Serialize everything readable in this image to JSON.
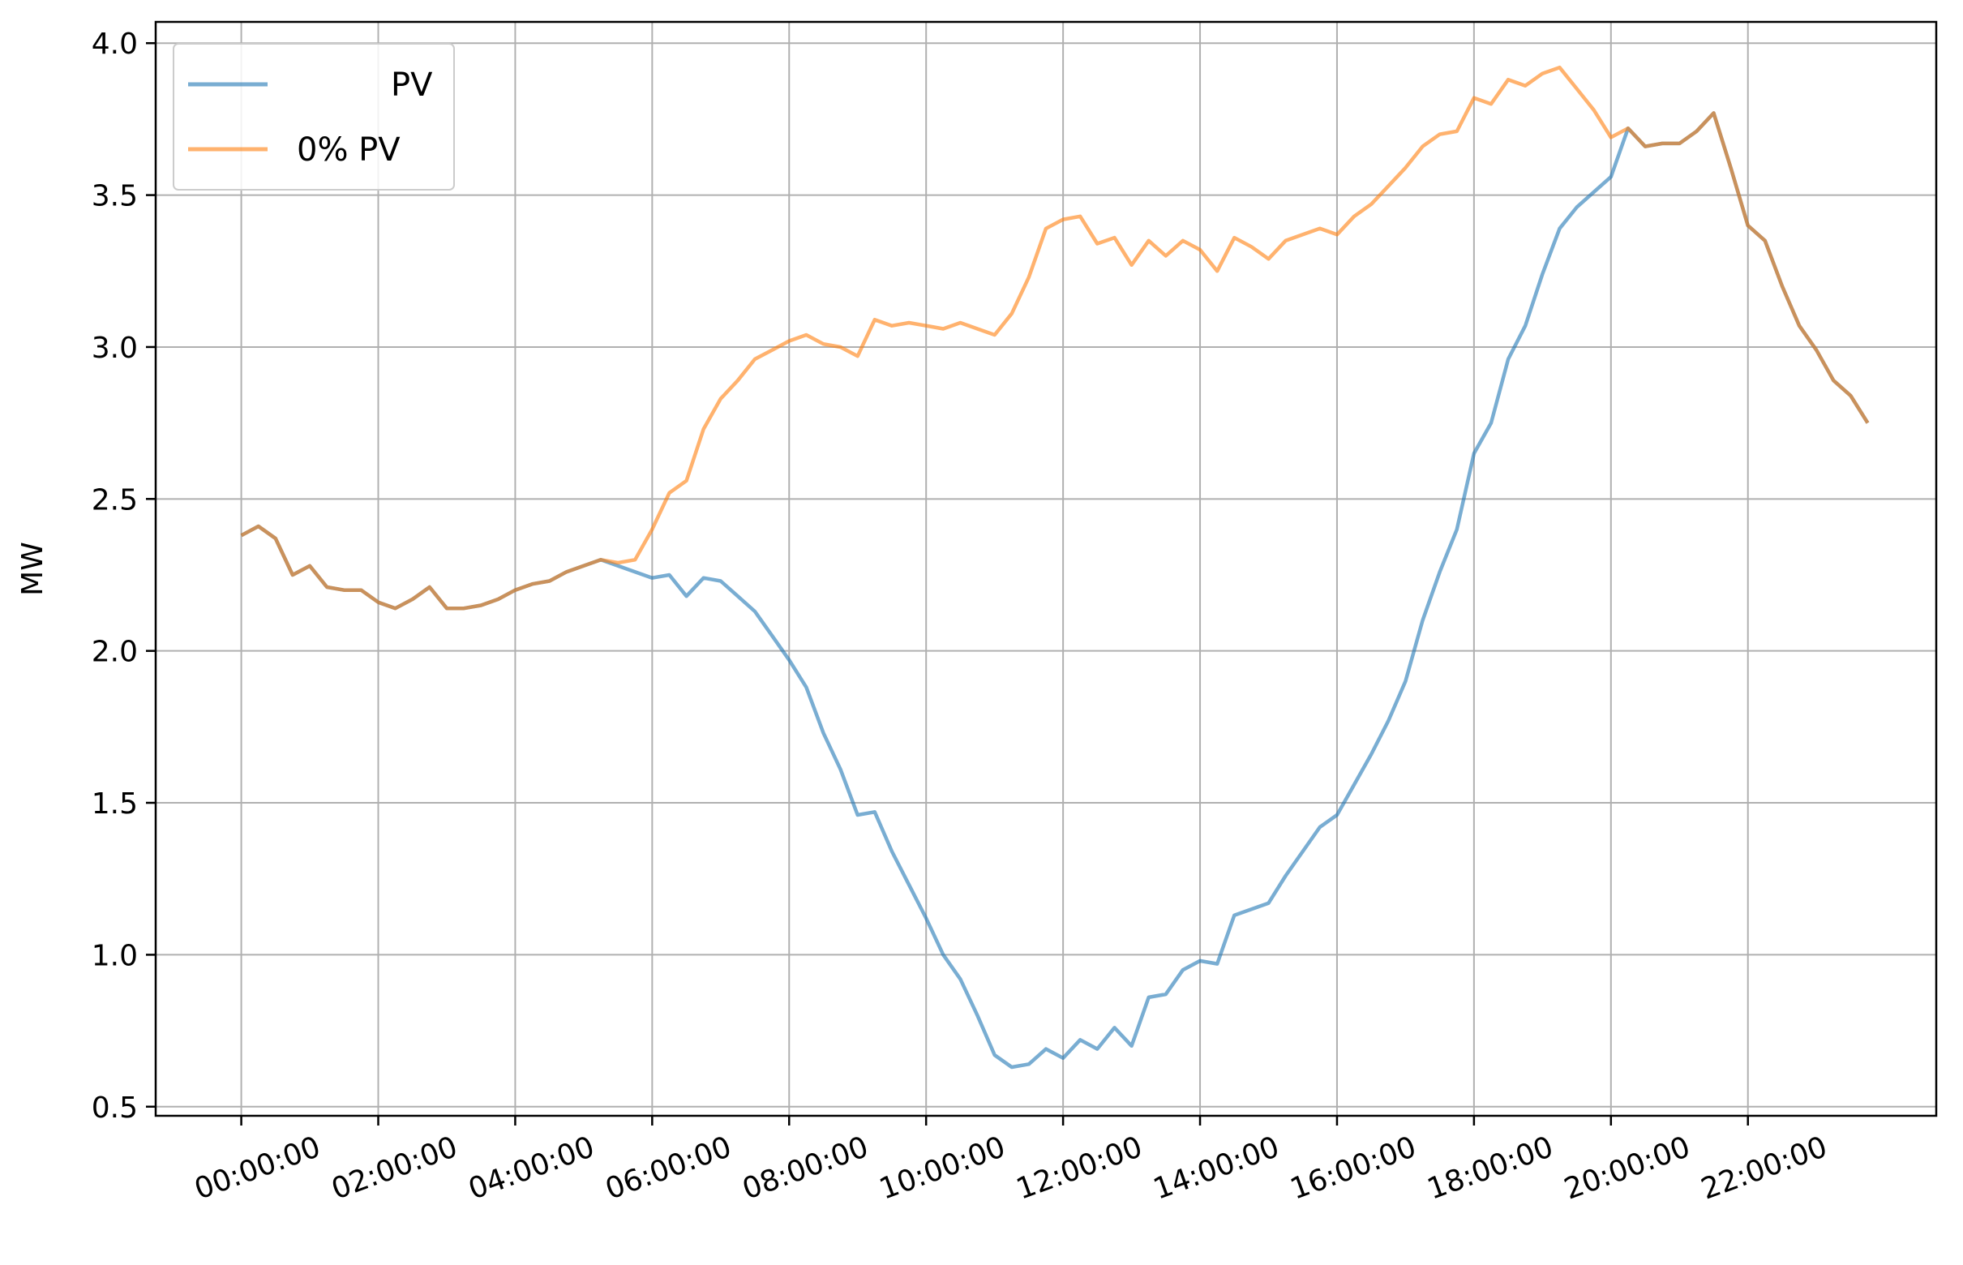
{
  "chart_data": {
    "type": "line",
    "title": "",
    "xlabel": "",
    "ylabel": "MW",
    "ylim": [
      0.5,
      4.0
    ],
    "yticks": [
      0.5,
      1.0,
      1.5,
      2.0,
      2.5,
      3.0,
      3.5,
      4.0
    ],
    "ytick_labels": [
      "0.5",
      "1.0",
      "1.5",
      "2.0",
      "2.5",
      "3.0",
      "3.5",
      "4.0"
    ],
    "xlim_hours": [
      -1.25,
      24.75
    ],
    "xticks_hours": [
      0,
      2,
      4,
      6,
      8,
      10,
      12,
      14,
      16,
      18,
      20,
      22
    ],
    "xtick_labels": [
      "00:00:00",
      "02:00:00",
      "04:00:00",
      "06:00:00",
      "08:00:00",
      "10:00:00",
      "12:00:00",
      "14:00:00",
      "16:00:00",
      "18:00:00",
      "20:00:00",
      "22:00:00"
    ],
    "grid": true,
    "legend_position": "upper-left",
    "x_hours": [
      0,
      0.25,
      0.5,
      0.75,
      1,
      1.25,
      1.5,
      1.75,
      2,
      2.25,
      2.5,
      2.75,
      3,
      3.25,
      3.5,
      3.75,
      4,
      4.25,
      4.5,
      4.75,
      5,
      5.25,
      5.5,
      5.75,
      6,
      6.25,
      6.5,
      6.75,
      7,
      7.25,
      7.5,
      7.75,
      8,
      8.25,
      8.5,
      8.75,
      9,
      9.25,
      9.5,
      9.75,
      10,
      10.25,
      10.5,
      10.75,
      11,
      11.25,
      11.5,
      11.75,
      12,
      12.25,
      12.5,
      12.75,
      13,
      13.25,
      13.5,
      13.75,
      14,
      14.25,
      14.5,
      14.75,
      15,
      15.25,
      15.5,
      15.75,
      16,
      16.25,
      16.5,
      16.75,
      17,
      17.25,
      17.5,
      17.75,
      18,
      18.25,
      18.5,
      18.75,
      19,
      19.25,
      19.5,
      19.75,
      20,
      20.25,
      20.5,
      20.75,
      21,
      21.25,
      21.5,
      21.75,
      22,
      22.25,
      22.5,
      22.75,
      23,
      23.25,
      23.5,
      23.75
    ],
    "series": [
      {
        "name": "PV",
        "color": "#1f77b4",
        "values": [
          2.38,
          2.41,
          2.37,
          2.25,
          2.28,
          2.21,
          2.2,
          2.2,
          2.16,
          2.14,
          2.17,
          2.21,
          2.14,
          2.14,
          2.15,
          2.17,
          2.2,
          2.22,
          2.23,
          2.26,
          2.28,
          2.3,
          2.28,
          2.26,
          2.24,
          2.25,
          2.18,
          2.24,
          2.23,
          2.18,
          2.13,
          2.05,
          1.97,
          1.88,
          1.73,
          1.61,
          1.46,
          1.47,
          1.34,
          1.23,
          1.12,
          1.0,
          0.92,
          0.8,
          0.67,
          0.63,
          0.64,
          0.69,
          0.66,
          0.72,
          0.69,
          0.76,
          0.7,
          0.86,
          0.87,
          0.95,
          0.98,
          0.97,
          1.13,
          1.15,
          1.17,
          1.26,
          1.34,
          1.42,
          1.46,
          1.56,
          1.66,
          1.77,
          1.9,
          2.1,
          2.26,
          2.4,
          2.65,
          2.75,
          2.96,
          3.07,
          3.24,
          3.39,
          3.46,
          3.51,
          3.56,
          3.72,
          3.66,
          3.67,
          3.67,
          3.71,
          3.77,
          3.59,
          3.4,
          3.35,
          3.2,
          3.07,
          2.99,
          2.89,
          2.84,
          2.75
        ]
      },
      {
        "name": "0% PV",
        "color": "#ff7f0e",
        "values": [
          2.38,
          2.41,
          2.37,
          2.25,
          2.28,
          2.21,
          2.2,
          2.2,
          2.16,
          2.14,
          2.17,
          2.21,
          2.14,
          2.14,
          2.15,
          2.17,
          2.2,
          2.22,
          2.23,
          2.26,
          2.28,
          2.3,
          2.29,
          2.3,
          2.4,
          2.52,
          2.56,
          2.73,
          2.83,
          2.89,
          2.96,
          2.99,
          3.02,
          3.04,
          3.01,
          3.0,
          2.97,
          3.09,
          3.07,
          3.08,
          3.07,
          3.06,
          3.08,
          3.06,
          3.04,
          3.11,
          3.23,
          3.39,
          3.42,
          3.43,
          3.34,
          3.36,
          3.27,
          3.35,
          3.3,
          3.35,
          3.32,
          3.25,
          3.36,
          3.33,
          3.29,
          3.35,
          3.37,
          3.39,
          3.37,
          3.43,
          3.47,
          3.53,
          3.59,
          3.66,
          3.7,
          3.71,
          3.82,
          3.8,
          3.88,
          3.86,
          3.9,
          3.92,
          3.85,
          3.78,
          3.69,
          3.72,
          3.66,
          3.67,
          3.67,
          3.71,
          3.77,
          3.59,
          3.4,
          3.35,
          3.2,
          3.07,
          2.99,
          2.89,
          2.84,
          2.75
        ]
      }
    ]
  }
}
